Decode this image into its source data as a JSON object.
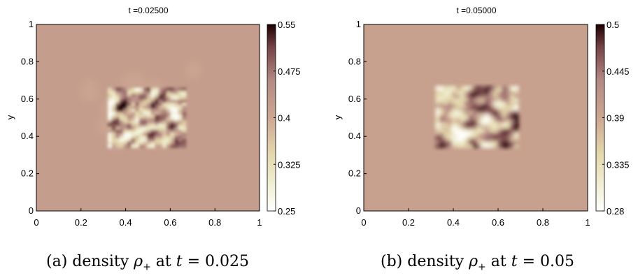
{
  "chart_data": [
    {
      "type": "heatmap",
      "title": "t =0.02500",
      "ylabel": "y",
      "xlim": [
        0,
        1
      ],
      "ylim": [
        0,
        1
      ],
      "xticks": [
        "0",
        "0.2",
        "0.4",
        "0.6",
        "0.8",
        "1"
      ],
      "yticks": [
        "0",
        "0.2",
        "0.4",
        "0.6",
        "0.8",
        "1"
      ],
      "colorbar": {
        "min": 0.25,
        "max": 0.55,
        "ticks": [
          "0.25",
          "0.325",
          "0.4",
          "0.475",
          "0.55"
        ],
        "colormap": "pink (reversed)"
      },
      "background_value": 0.42,
      "pattern_region": {
        "x": [
          0.32,
          0.67
        ],
        "y": [
          0.34,
          0.66
        ]
      },
      "pattern_value_range": [
        0.25,
        0.55
      ],
      "caption": "(a) density ρ+ at t = 0.025"
    },
    {
      "type": "heatmap",
      "title": "t =0.05000",
      "ylabel": "y",
      "xlim": [
        0,
        1
      ],
      "ylim": [
        0,
        1
      ],
      "xticks": [
        "0",
        "0.2",
        "0.4",
        "0.6",
        "0.8",
        "1"
      ],
      "yticks": [
        "0",
        "0.2",
        "0.4",
        "0.6",
        "0.8",
        "1"
      ],
      "colorbar": {
        "min": 0.28,
        "max": 0.5,
        "ticks": [
          "0.28",
          "0.335",
          "0.39",
          "0.445",
          "0.5"
        ],
        "colormap": "pink (reversed)"
      },
      "background_value": 0.4,
      "pattern_region": {
        "x": [
          0.32,
          0.69
        ],
        "y": [
          0.34,
          0.67
        ]
      },
      "pattern_value_range": [
        0.28,
        0.5
      ],
      "caption": "(b) density ρ+ at t = 0.05"
    }
  ],
  "captions": {
    "a": {
      "label": "(a) density ",
      "symbol": "ρ",
      "sub": "+",
      "rest": " at ",
      "var": "t",
      "eq": " = 0.025"
    },
    "b": {
      "label": "(b) density ",
      "symbol": "ρ",
      "sub": "+",
      "rest": " at ",
      "var": "t",
      "eq": " = 0.05"
    }
  }
}
